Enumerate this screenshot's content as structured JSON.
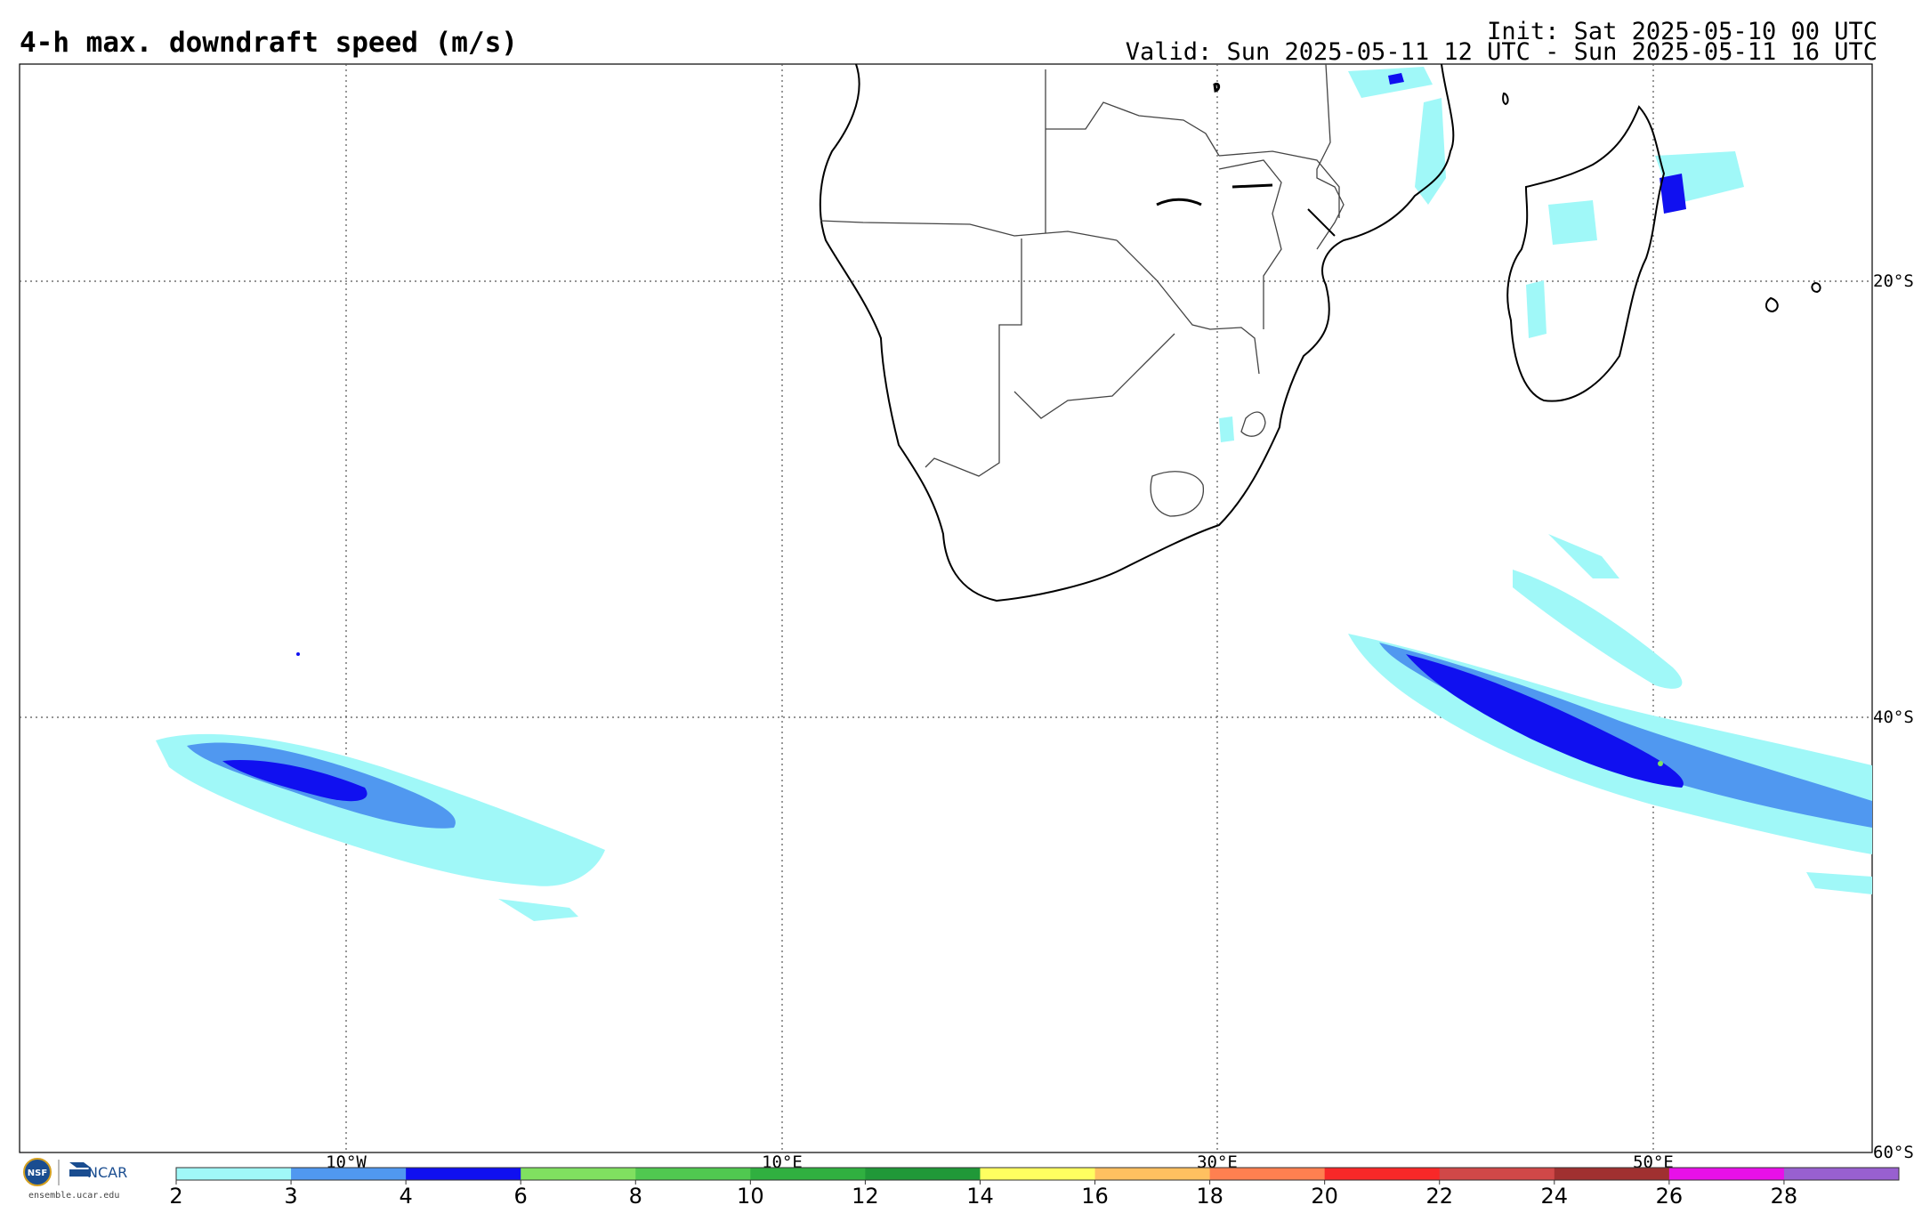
{
  "title": "4-h max. downdraft speed (m/s)",
  "init": "Init: Sat 2025-05-10 00 UTC",
  "valid": "Valid: Sun 2025-05-11 12 UTC - Sun 2025-05-11 16 UTC",
  "lon_labels": [
    "10°W",
    "10°E",
    "30°E",
    "50°E"
  ],
  "lat_labels": [
    "20°S",
    "40°S",
    "60°S"
  ],
  "colorbar": {
    "ticks": [
      "2",
      "3",
      "4",
      "6",
      "8",
      "10",
      "12",
      "14",
      "16",
      "18",
      "20",
      "22",
      "24",
      "26",
      "28"
    ],
    "colors": [
      "#a0f8f8",
      "#5098f0",
      "#1010f0",
      "#80e060",
      "#50c850",
      "#30b040",
      "#209838",
      "#ffff60",
      "#ffc060",
      "#ff8050",
      "#f82828",
      "#d04848",
      "#a03030",
      "#e810e8",
      "#9860d0"
    ]
  },
  "logo": {
    "nsf": "NSF",
    "ncar": "NCAR",
    "url": "ensemble.ucar.edu"
  }
}
